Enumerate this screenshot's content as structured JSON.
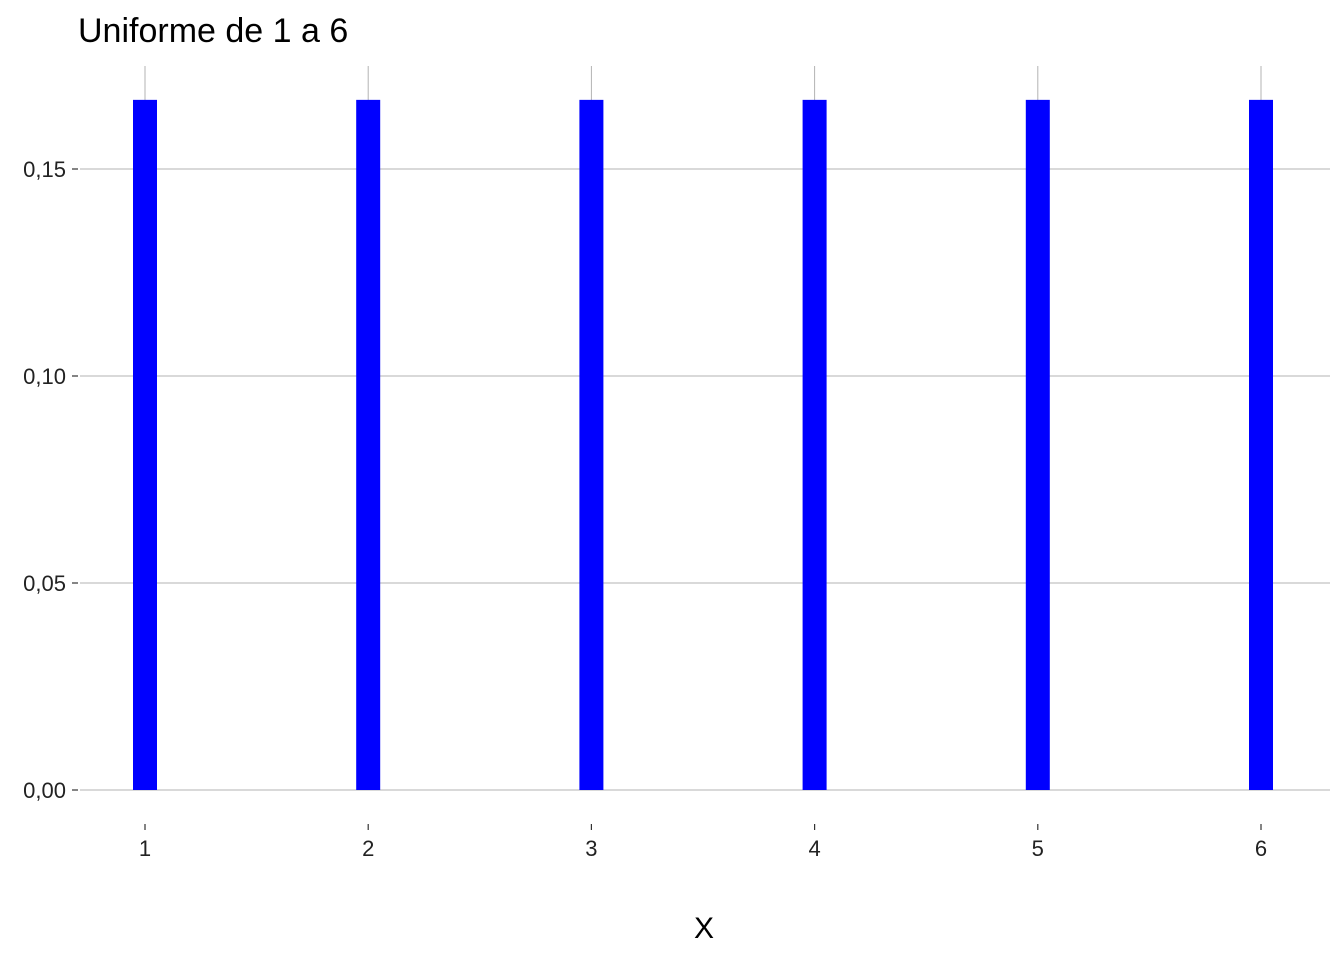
{
  "chart_data": {
    "type": "bar",
    "title": "Uniforme de 1 a 6",
    "xlabel": "X",
    "ylabel": "",
    "categories": [
      "1",
      "2",
      "3",
      "4",
      "5",
      "6"
    ],
    "values": [
      0.1667,
      0.1667,
      0.1667,
      0.1667,
      0.1667,
      0.1667
    ],
    "ylim": [
      0,
      0.1667
    ],
    "y_ticks": [
      0.0,
      0.05,
      0.1,
      0.15
    ],
    "y_tick_labels": [
      "0,00",
      "0,05",
      "0,10",
      "0,15"
    ],
    "grid": true,
    "bar_color": "#0000ff",
    "grid_color": "#b3b3b3"
  }
}
